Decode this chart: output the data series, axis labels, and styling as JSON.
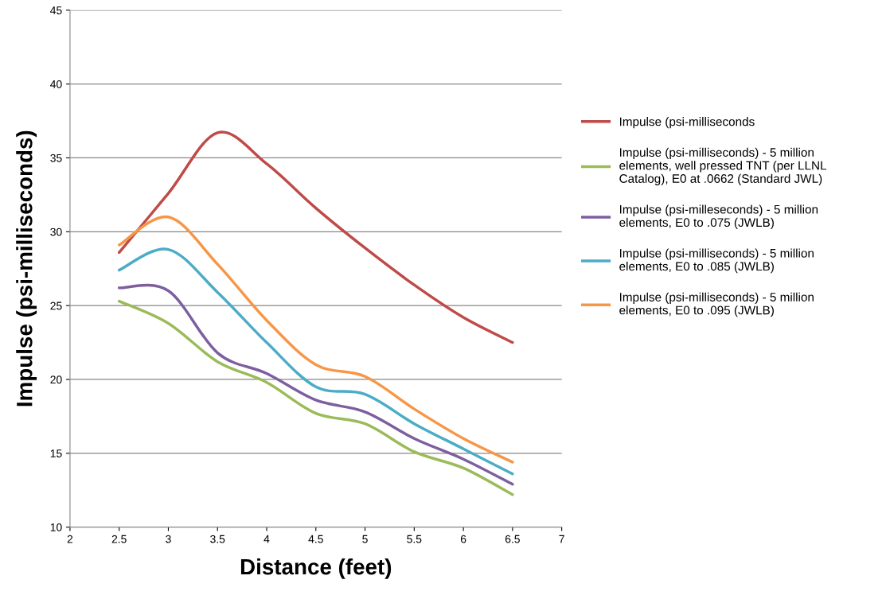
{
  "chart_data": {
    "type": "line",
    "xlabel": "Distance (feet)",
    "ylabel": "Impulse (psi-milliseconds)",
    "x": [
      2.5,
      3,
      3.5,
      4,
      4.5,
      5,
      5.5,
      6,
      6.5
    ],
    "xlim": [
      2,
      7
    ],
    "xticks": [
      2,
      2.5,
      3,
      3.5,
      4,
      4.5,
      5,
      5.5,
      6,
      6.5,
      7
    ],
    "ylim": [
      10,
      45
    ],
    "yticks": [
      10,
      15,
      20,
      25,
      30,
      35,
      40,
      45
    ],
    "grid": "y",
    "legend": "right",
    "marker": "none",
    "line_style": "solid",
    "series": [
      {
        "name": "Impulse (psi-milliseconds",
        "color": "#be4b48",
        "values": [
          28.6,
          32.6,
          36.7,
          34.6,
          31.6,
          28.9,
          26.4,
          24.2,
          22.5
        ]
      },
      {
        "name": "Impulse (psi-milliseconds) - 5 million elements, well pressed TNT (per LLNL Catalog), E0 at .0662 (Standard JWL)",
        "color": "#9bbb59",
        "values": [
          25.3,
          23.8,
          21.2,
          19.8,
          17.7,
          17.0,
          15.1,
          14.0,
          12.2
        ]
      },
      {
        "name": "Impulse (psi-milleseconds) - 5 million elements, E0 to .075 (JWLB)",
        "color": "#7d5fa0",
        "values": [
          26.2,
          26.0,
          21.8,
          20.4,
          18.6,
          17.8,
          16.0,
          14.6,
          12.9
        ]
      },
      {
        "name": "Impulse (psi-milliseconds) - 5 million elements, E0 to .085 (JWLB)",
        "color": "#4bacc6",
        "values": [
          27.4,
          28.8,
          25.9,
          22.5,
          19.5,
          19.0,
          17.0,
          15.3,
          13.6
        ]
      },
      {
        "name": "Impulse (psi-milliseconds) - 5 million elements, E0 to .095 (JWLB)",
        "color": "#f79646",
        "values": [
          29.1,
          31.0,
          27.8,
          24.0,
          21.0,
          20.2,
          18.0,
          16.0,
          14.4
        ]
      }
    ]
  }
}
